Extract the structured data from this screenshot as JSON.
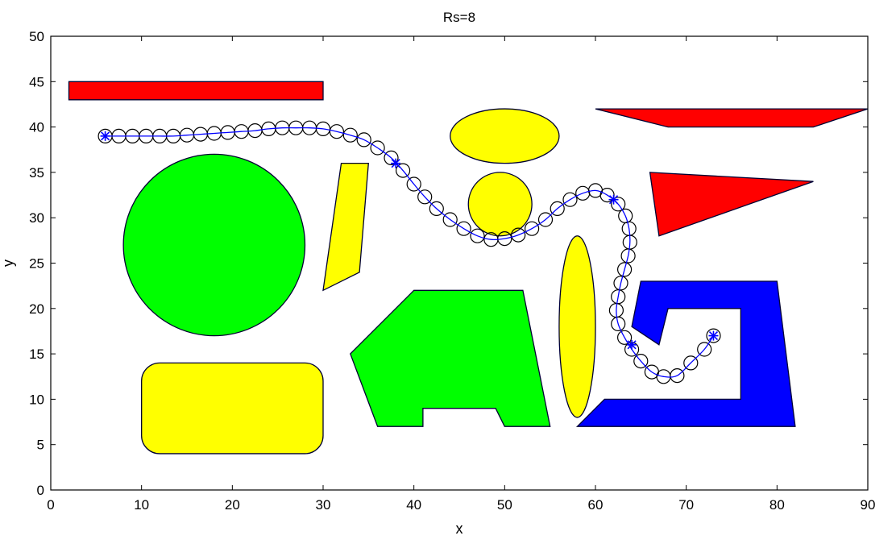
{
  "chart_data": {
    "type": "path-planning-plot",
    "title": "Rs=8",
    "xlabel": "x",
    "ylabel": "y",
    "xlim": [
      0,
      90
    ],
    "ylim": [
      0,
      50
    ],
    "xticks": [
      0,
      10,
      20,
      30,
      40,
      50,
      60,
      70,
      80,
      90
    ],
    "yticks": [
      0,
      5,
      10,
      15,
      20,
      25,
      30,
      35,
      40,
      45,
      50
    ],
    "grid": false,
    "colors": {
      "red": "#ff0000",
      "yellow": "#ffff00",
      "green": "#00ff00",
      "blue": "#0000ff",
      "path": "#0000ff",
      "outline": "#000033"
    },
    "obstacles": [
      {
        "name": "red-bar-top",
        "shape": "polygon",
        "color": "red",
        "points": [
          [
            2,
            43
          ],
          [
            30,
            43
          ],
          [
            30,
            45
          ],
          [
            2,
            45
          ]
        ]
      },
      {
        "name": "red-trapezoid-right",
        "shape": "polygon",
        "color": "red",
        "points": [
          [
            60,
            42
          ],
          [
            90,
            42
          ],
          [
            84,
            40
          ],
          [
            68,
            40
          ]
        ]
      },
      {
        "name": "red-triangle",
        "shape": "polygon",
        "color": "red",
        "points": [
          [
            66,
            35
          ],
          [
            84,
            34
          ],
          [
            67,
            28
          ]
        ]
      },
      {
        "name": "yellow-ellipse-top",
        "shape": "ellipse",
        "color": "yellow",
        "cx": 50,
        "cy": 39,
        "rx": 6,
        "ry": 3
      },
      {
        "name": "yellow-circle-middle",
        "shape": "ellipse",
        "color": "yellow",
        "cx": 49.5,
        "cy": 31.5,
        "rx": 3.5,
        "ry": 3.5
      },
      {
        "name": "yellow-quad-thin",
        "shape": "polygon",
        "color": "yellow",
        "points": [
          [
            32,
            36
          ],
          [
            35,
            36
          ],
          [
            34,
            24
          ],
          [
            30,
            22
          ]
        ]
      },
      {
        "name": "yellow-ellipse-tall",
        "shape": "ellipse",
        "color": "yellow",
        "cx": 58,
        "cy": 18,
        "rx": 2,
        "ry": 10
      },
      {
        "name": "yellow-rounded-rect",
        "shape": "roundrect",
        "color": "yellow",
        "x": 10,
        "y": 4,
        "w": 20,
        "h": 10,
        "r": 2
      },
      {
        "name": "green-circle",
        "shape": "ellipse",
        "color": "green",
        "cx": 18,
        "cy": 27,
        "rx": 10,
        "ry": 10
      },
      {
        "name": "green-polygon",
        "shape": "polygon",
        "color": "green",
        "points": [
          [
            40,
            22
          ],
          [
            52,
            22
          ],
          [
            55,
            7
          ],
          [
            50,
            7
          ],
          [
            49,
            9
          ],
          [
            41,
            9
          ],
          [
            41,
            7
          ],
          [
            36,
            7
          ],
          [
            33,
            15
          ]
        ]
      },
      {
        "name": "blue-c-shape",
        "shape": "polygon",
        "color": "blue",
        "points": [
          [
            65,
            23
          ],
          [
            80,
            23
          ],
          [
            82,
            7
          ],
          [
            58,
            7
          ],
          [
            61,
            10
          ],
          [
            76,
            10
          ],
          [
            76,
            20
          ],
          [
            68,
            20
          ],
          [
            67,
            16
          ],
          [
            64,
            18
          ]
        ]
      }
    ],
    "path": [
      [
        6,
        39
      ],
      [
        38,
        36
      ],
      [
        62,
        32
      ],
      [
        64,
        16
      ],
      [
        73,
        17
      ]
    ],
    "path_circles": [
      [
        6,
        39
      ],
      [
        7.5,
        39
      ],
      [
        9,
        39
      ],
      [
        10.5,
        39
      ],
      [
        12,
        39
      ],
      [
        13.5,
        39
      ],
      [
        15,
        39.1
      ],
      [
        16.5,
        39.2
      ],
      [
        18,
        39.3
      ],
      [
        19.5,
        39.4
      ],
      [
        21,
        39.5
      ],
      [
        22.5,
        39.6
      ],
      [
        24,
        39.8
      ],
      [
        25.5,
        39.9
      ],
      [
        27,
        39.9
      ],
      [
        28.5,
        39.9
      ],
      [
        30,
        39.8
      ],
      [
        31.5,
        39.5
      ],
      [
        33,
        39.1
      ],
      [
        34.5,
        38.6
      ],
      [
        36,
        37.7
      ],
      [
        37.5,
        36.6
      ],
      [
        38.8,
        35.2
      ],
      [
        40,
        33.7
      ],
      [
        41.2,
        32.3
      ],
      [
        42.5,
        31
      ],
      [
        44,
        29.8
      ],
      [
        45.5,
        28.8
      ],
      [
        47,
        28
      ],
      [
        48.5,
        27.6
      ],
      [
        50,
        27.7
      ],
      [
        51.5,
        28.1
      ],
      [
        53,
        28.8
      ],
      [
        54.5,
        29.8
      ],
      [
        55.8,
        31
      ],
      [
        57.2,
        32
      ],
      [
        58.6,
        32.7
      ],
      [
        60,
        33
      ],
      [
        61.3,
        32.5
      ],
      [
        62.5,
        31.5
      ],
      [
        63.3,
        30.2
      ],
      [
        63.7,
        28.8
      ],
      [
        63.8,
        27.3
      ],
      [
        63.6,
        25.8
      ],
      [
        63.2,
        24.3
      ],
      [
        62.8,
        22.8
      ],
      [
        62.5,
        21.3
      ],
      [
        62.3,
        19.8
      ],
      [
        62.5,
        18.3
      ],
      [
        63.2,
        16.8
      ],
      [
        64,
        15.5
      ],
      [
        65,
        14.2
      ],
      [
        66.2,
        13
      ],
      [
        67.5,
        12.5
      ],
      [
        69,
        12.6
      ],
      [
        70.5,
        14
      ],
      [
        72,
        15.5
      ],
      [
        73,
        17
      ]
    ]
  }
}
